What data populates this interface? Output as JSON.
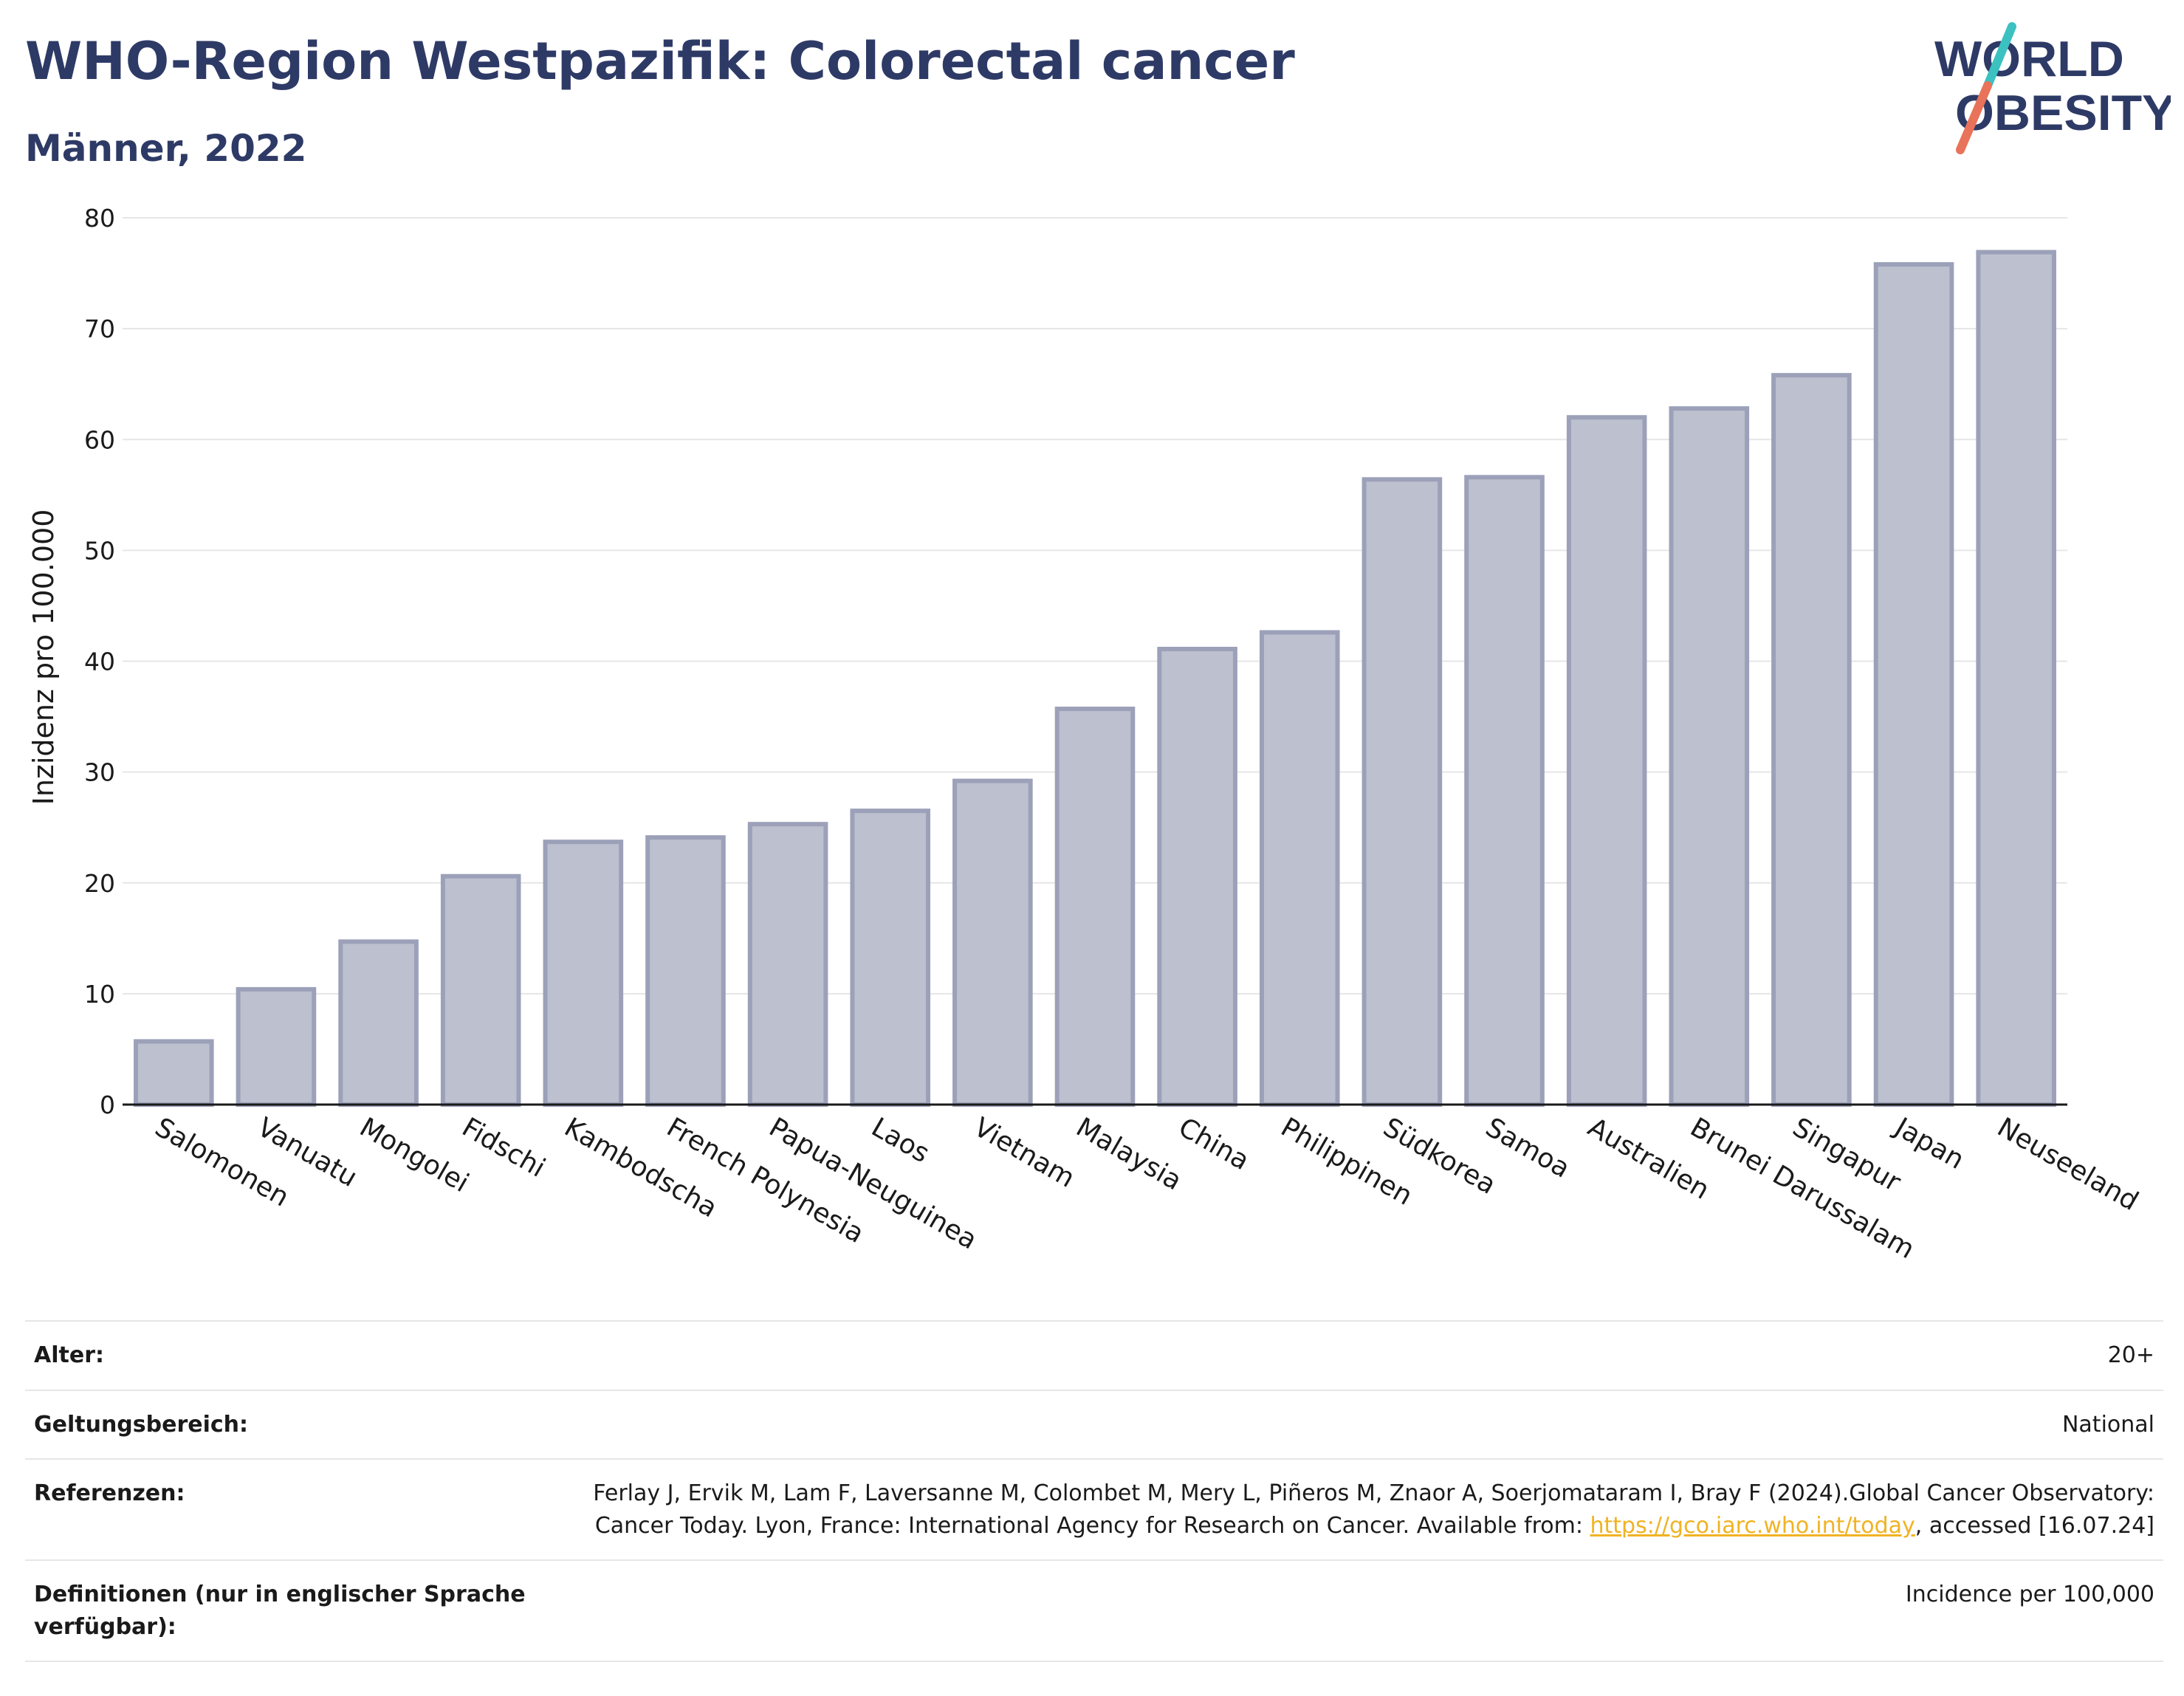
{
  "header": {
    "title": "WHO-Region Westpazifik: Colorectal cancer",
    "subtitle": "Männer, 2022"
  },
  "logo": {
    "line1": "WORLD",
    "line2": "OBESITY",
    "colors": {
      "text": "#2e3a66",
      "accent_top": "#3cc1c1",
      "accent_bottom": "#e8735a"
    }
  },
  "chart_data": {
    "type": "bar",
    "categories": [
      "Salomonen",
      "Vanuatu",
      "Mongolei",
      "Fidschi",
      "Kambodscha",
      "French Polynesia",
      "Papua-Neuguinea",
      "Laos",
      "Vietnam",
      "Malaysia",
      "China",
      "Philippinen",
      "Südkorea",
      "Samoa",
      "Australien",
      "Brunei Darussalam",
      "Singapur",
      "Japan",
      "Neuseeland"
    ],
    "values": [
      5.7,
      10.4,
      14.7,
      20.6,
      23.7,
      24.1,
      25.3,
      26.5,
      29.2,
      35.7,
      41.1,
      42.6,
      56.4,
      56.6,
      62.0,
      62.8,
      65.8,
      75.8,
      76.9
    ],
    "title": "WHO-Region Westpazifik: Colorectal cancer",
    "xlabel": "",
    "ylabel": "Inzidenz pro 100.000",
    "ylim": [
      0,
      80
    ],
    "yticks": [
      0,
      10,
      20,
      30,
      40,
      50,
      60,
      70,
      80
    ],
    "grid": true,
    "colors": {
      "bar_fill": "#bcc0cf",
      "bar_stroke": "#9ca1b9",
      "grid": "#e6e6e6",
      "axis": "#1a1a1a"
    }
  },
  "info": {
    "rows": [
      {
        "key": "Alter:",
        "value": "20+"
      },
      {
        "key": "Geltungsbereich:",
        "value": "National"
      },
      {
        "key": "Referenzen:",
        "value_before": "Ferlay J, Ervik M, Lam F, Laversanne M, Colombet M, Mery L, Piñeros M, Znaor A, Soerjomataram I, Bray F (2024).Global Cancer Observatory: Cancer Today. Lyon, France: International Agency for Research on Cancer. Available from: ",
        "link": "https://gco.iarc.who.int/today",
        "value_after": ", accessed [16.07.24]"
      },
      {
        "key": "Definitionen (nur in englischer Sprache verfügbar):",
        "value": "Incidence per 100,000"
      }
    ]
  }
}
